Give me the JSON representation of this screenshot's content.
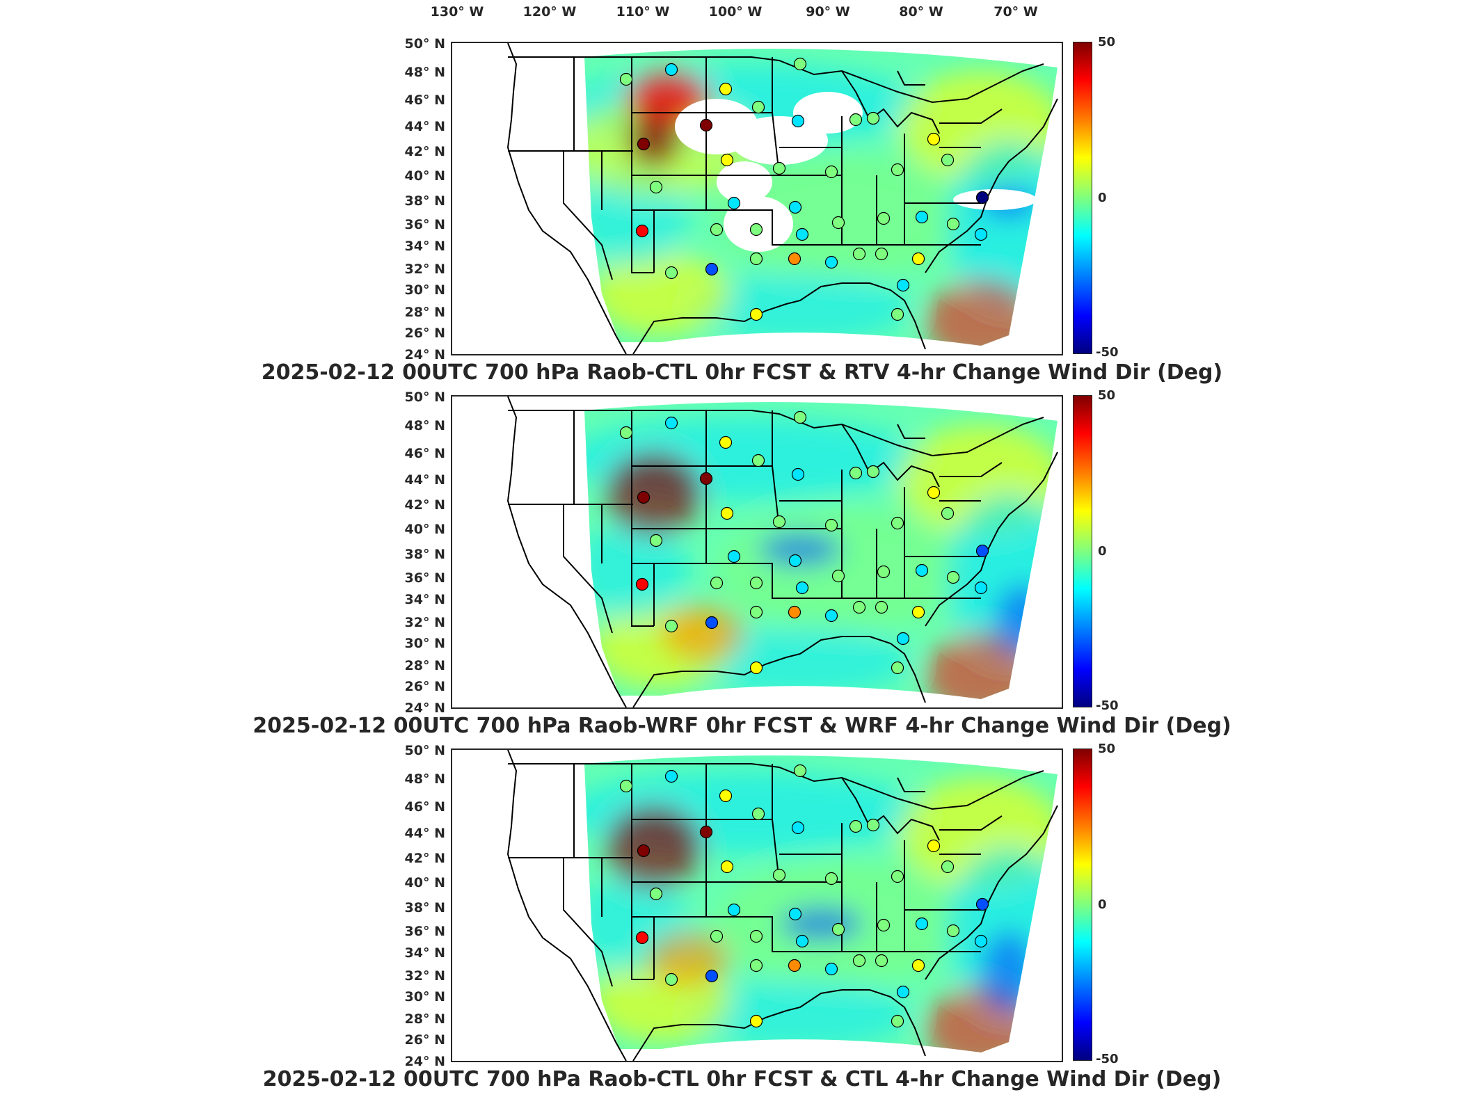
{
  "lon_labels": [
    "130° W",
    "120° W",
    "110° W",
    "100° W",
    "90° W",
    "80° W",
    "70° W"
  ],
  "lat_labels": [
    "50° N",
    "48° N",
    "46° N",
    "44° N",
    "42° N",
    "40° N",
    "38° N",
    "36° N",
    "34° N",
    "32° N",
    "30° N",
    "28° N",
    "26° N",
    "24° N"
  ],
  "colorbar": {
    "max_label": "50",
    "mid_label": "0",
    "min_label": "-50",
    "max": 50,
    "min": -50
  },
  "panels": [
    {
      "title": "2025-02-12 00UTC 700 hPa Raob-CTL 0hr FCST & RTV 4-hr Change Wind Dir (Deg)"
    },
    {
      "title": "2025-02-12 00UTC 700 hPa Raob-WRF 0hr FCST & WRF 4-hr Change Wind Dir (Deg)"
    },
    {
      "title": "2025-02-12 00UTC 700 hPa Raob-CTL 0hr FCST & CTL 4-hr Change Wind Dir (Deg)"
    }
  ],
  "colors": {
    "dark_red": "#7f0000",
    "red": "#ff0000",
    "orange": "#ff8c00",
    "yellow": "#ffff00",
    "green": "#7fff7f",
    "cyan": "#00e5ff",
    "blue": "#0050ff",
    "dark_blue": "#00007f"
  }
}
